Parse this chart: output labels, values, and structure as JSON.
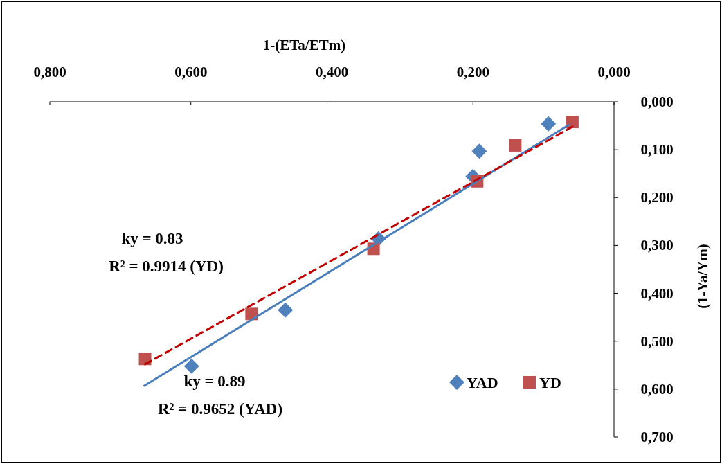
{
  "chart_data": {
    "type": "scatter",
    "xlabel": "1-(ETa/ETm)",
    "ylabel": "(1-Ya/Ym)",
    "xlim": [
      0.8,
      0
    ],
    "ylim": [
      0.7,
      0
    ],
    "xticks": [
      {
        "value": 0.8,
        "label": "0,800"
      },
      {
        "value": 0.6,
        "label": "0,600"
      },
      {
        "value": 0.4,
        "label": "0,400"
      },
      {
        "value": 0.2,
        "label": "0,200"
      },
      {
        "value": 0,
        "label": "0,000"
      }
    ],
    "yticks": [
      {
        "value": 0,
        "label": "0,000"
      },
      {
        "value": 0.1,
        "label": "0,100"
      },
      {
        "value": 0.2,
        "label": "0,200"
      },
      {
        "value": 0.3,
        "label": "0,300"
      },
      {
        "value": 0.4,
        "label": "0,400"
      },
      {
        "value": 0.5,
        "label": "0,500"
      },
      {
        "value": 0.6,
        "label": "0,600"
      },
      {
        "value": 0.7,
        "label": "0,700"
      }
    ],
    "grid": false,
    "legend": "bottom right",
    "series": [
      {
        "name": "YAD",
        "type": "scatter",
        "color": "#4f81bd",
        "marker": "diamond",
        "x": [
          0.599,
          0.466,
          0.334,
          0.2,
          0.191,
          0.093
        ],
        "values": [
          0.552,
          0.435,
          0.286,
          0.156,
          0.103,
          0.046
        ]
      },
      {
        "name": "YD",
        "type": "scatter",
        "color": "#c0504d",
        "marker": "square",
        "x": [
          0.665,
          0.514,
          0.341,
          0.194,
          0.14,
          0.059
        ],
        "values": [
          0.537,
          0.443,
          0.307,
          0.166,
          0.091,
          0.042
        ]
      },
      {
        "type": "line",
        "color": "#4a7ebb",
        "line_style": "solid",
        "marker": "none",
        "x": [
          0.666,
          0.064
        ],
        "values": [
          0.593,
          0.048
        ]
      },
      {
        "type": "line",
        "color": "#c00000",
        "line_style": "dashed",
        "marker": "none",
        "x": [
          0.665,
          0.059
        ],
        "values": [
          0.548,
          0.052
        ]
      }
    ],
    "annotations": [
      "ky = 0.83",
      "R² = 0.9914 (YD)",
      "ky = 0.89",
      "R² = 0.9652 (YAD)"
    ]
  }
}
